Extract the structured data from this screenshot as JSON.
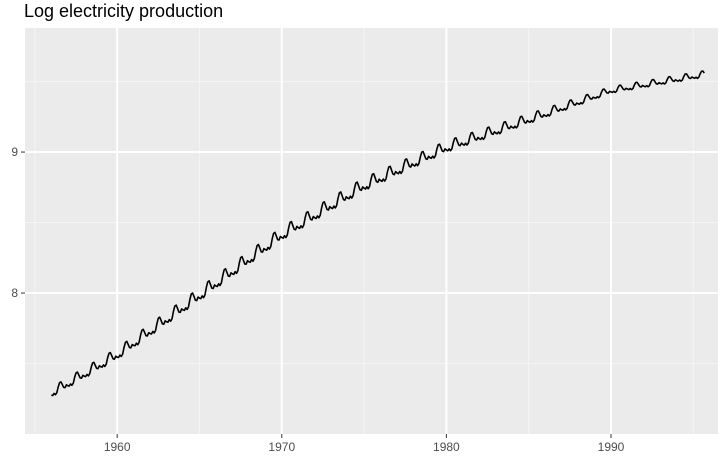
{
  "chart_data": {
    "type": "line",
    "title": "Log electricity production",
    "xlabel": "",
    "ylabel": "",
    "xlim": [
      1954.4,
      1996.5
    ],
    "ylim": [
      7.0,
      9.88
    ],
    "x_ticks": [
      1960,
      1970,
      1980,
      1990
    ],
    "y_ticks": [
      8,
      9
    ],
    "x_tick_labels": [
      "1960",
      "1970",
      "1980",
      "1990"
    ],
    "y_tick_labels": [
      "8",
      "9"
    ],
    "grid": true,
    "legend": "none",
    "frequency": "monthly",
    "start": 1956.0,
    "end": 1995.67,
    "trend_anchors": [
      [
        1956,
        7.28
      ],
      [
        1960,
        7.55
      ],
      [
        1965,
        7.97
      ],
      [
        1970,
        8.4
      ],
      [
        1975,
        8.75
      ],
      [
        1980,
        9.02
      ],
      [
        1985,
        9.22
      ],
      [
        1990,
        9.43
      ],
      [
        1995,
        9.53
      ],
      [
        1996,
        9.55
      ]
    ],
    "seasonal_amplitude_anchors": [
      [
        1956,
        0.09
      ],
      [
        1965,
        0.12
      ],
      [
        1975,
        0.12
      ],
      [
        1985,
        0.09
      ],
      [
        1990,
        0.06
      ],
      [
        1996,
        0.06
      ]
    ],
    "seasonal_pattern": [
      -0.05,
      -0.14,
      -0.04,
      -0.2,
      -0.1,
      0.28,
      0.55,
      0.55,
      0.28,
      0.0,
      -0.08,
      0.07
    ],
    "colors": {
      "line": "#000000",
      "panel": "#ebebeb",
      "grid_major": "#ffffff",
      "grid_minor": "#f5f5f5",
      "tick": "#4d4d4d"
    }
  }
}
